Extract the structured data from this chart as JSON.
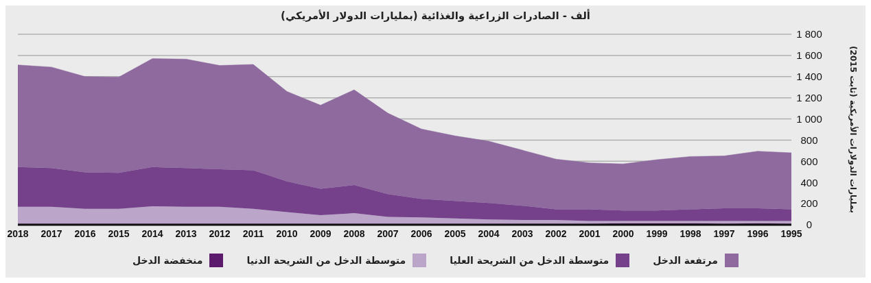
{
  "chart_data": {
    "type": "area",
    "title": "ألف - الصادرات الزراعية والغذائية (بمليارات الدولار الأمريكي)",
    "ylabel": "بمليارات الدولارات الأمريكية (ثابت 2015)",
    "categories": [
      "2018",
      "2017",
      "2016",
      "2015",
      "2014",
      "2013",
      "2012",
      "2011",
      "2010",
      "2009",
      "2008",
      "2007",
      "2006",
      "2005",
      "2004",
      "2003",
      "2002",
      "2001",
      "2000",
      "1999",
      "1998",
      "1997",
      "1996",
      "1995"
    ],
    "stacked": true,
    "grid": "y",
    "legend": "bottom",
    "ylim": [
      0,
      1800
    ],
    "yticks": [
      0,
      200,
      400,
      600,
      800,
      {
        "value": 1000,
        "label": "1 000"
      },
      {
        "value": 1200,
        "label": "1 200"
      },
      {
        "value": 1400,
        "label": "1 400"
      },
      {
        "value": 1600,
        "label": "1 600"
      },
      {
        "value": 1800,
        "label": "1 800"
      }
    ],
    "series": [
      {
        "name": "منخفضة الدخل",
        "color": "#5c1a6c",
        "values": [
          10,
          10,
          10,
          10,
          10,
          10,
          10,
          10,
          10,
          10,
          10,
          10,
          10,
          10,
          10,
          10,
          10,
          10,
          15,
          15,
          15,
          10,
          15,
          10
        ]
      },
      {
        "name": "متوسطة الدخل من الشريحة الدنيا",
        "color": "#bba6c9",
        "values": [
          160,
          160,
          140,
          140,
          165,
          160,
          160,
          140,
          110,
          80,
          100,
          65,
          60,
          50,
          40,
          35,
          35,
          25,
          20,
          20,
          20,
          25,
          20,
          25
        ]
      },
      {
        "name": "متوسطة الدخل من الشريحة العليا",
        "color": "#74418a",
        "values": [
          375,
          365,
          345,
          340,
          370,
          365,
          355,
          365,
          290,
          250,
          265,
          215,
          175,
          165,
          155,
          135,
          100,
          110,
          100,
          100,
          110,
          120,
          120,
          110
        ]
      },
      {
        "name": "مرتفعة الدخل",
        "color": "#8e6a9f",
        "values": [
          965,
          955,
          905,
          905,
          1025,
          1030,
          980,
          1000,
          850,
          790,
          900,
          765,
          660,
          615,
          585,
          525,
          475,
          440,
          440,
          480,
          500,
          495,
          540,
          535
        ]
      }
    ]
  }
}
